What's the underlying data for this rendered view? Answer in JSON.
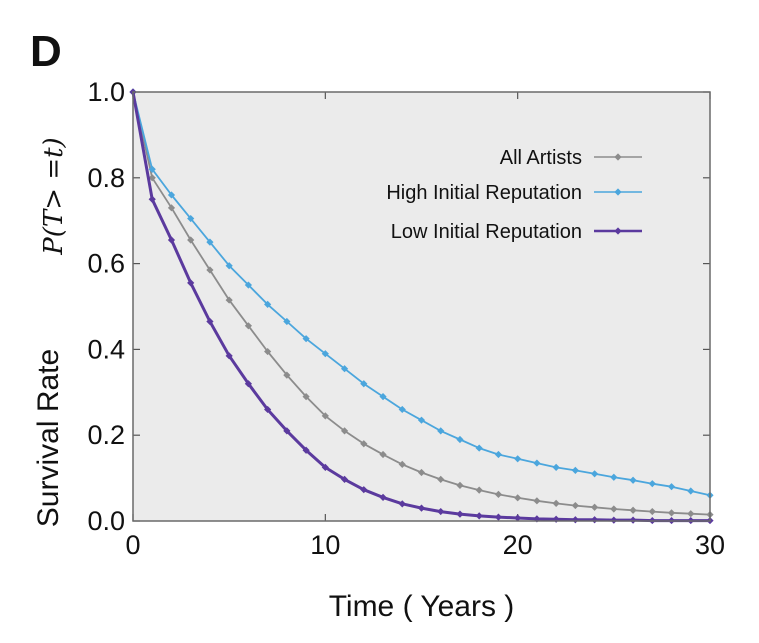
{
  "panel_label": "D",
  "chart_data": {
    "type": "line",
    "title": "",
    "xlabel": "Time ( Years )",
    "ylabel": "Survival Rate",
    "ylabel_math": "P(T> =t)",
    "xlim": [
      0,
      30
    ],
    "ylim": [
      0,
      1.0
    ],
    "xticks": [
      "0",
      "10",
      "20",
      "30"
    ],
    "yticks": [
      "0.0",
      "0.2",
      "0.4",
      "0.6",
      "0.8",
      "1.0"
    ],
    "grid": false,
    "background": "#ebebeb",
    "legend_position": "top-right",
    "x": [
      0,
      1,
      2,
      3,
      4,
      5,
      6,
      7,
      8,
      9,
      10,
      11,
      12,
      13,
      14,
      15,
      16,
      17,
      18,
      19,
      20,
      21,
      22,
      23,
      24,
      25,
      26,
      27,
      28,
      29,
      30
    ],
    "series": [
      {
        "name": "All Artists",
        "color": "#8c8c8c",
        "values": [
          1.0,
          0.8,
          0.73,
          0.655,
          0.585,
          0.515,
          0.455,
          0.395,
          0.34,
          0.29,
          0.245,
          0.21,
          0.18,
          0.155,
          0.132,
          0.113,
          0.097,
          0.083,
          0.072,
          0.062,
          0.054,
          0.047,
          0.041,
          0.036,
          0.032,
          0.028,
          0.025,
          0.022,
          0.019,
          0.017,
          0.015
        ]
      },
      {
        "name": "High Initial Reputation",
        "color": "#4ba6dd",
        "values": [
          1.0,
          0.82,
          0.76,
          0.705,
          0.65,
          0.595,
          0.55,
          0.505,
          0.465,
          0.425,
          0.39,
          0.355,
          0.32,
          0.29,
          0.26,
          0.235,
          0.21,
          0.19,
          0.17,
          0.155,
          0.145,
          0.135,
          0.125,
          0.118,
          0.11,
          0.102,
          0.095,
          0.087,
          0.08,
          0.07,
          0.06
        ]
      },
      {
        "name": "Low Initial Reputation",
        "color": "#5b3a9e",
        "values": [
          1.0,
          0.75,
          0.655,
          0.555,
          0.465,
          0.385,
          0.32,
          0.26,
          0.21,
          0.165,
          0.125,
          0.097,
          0.073,
          0.055,
          0.04,
          0.03,
          0.022,
          0.016,
          0.012,
          0.009,
          0.007,
          0.005,
          0.004,
          0.003,
          0.003,
          0.002,
          0.002,
          0.001,
          0.001,
          0.001,
          0.001
        ]
      }
    ]
  }
}
